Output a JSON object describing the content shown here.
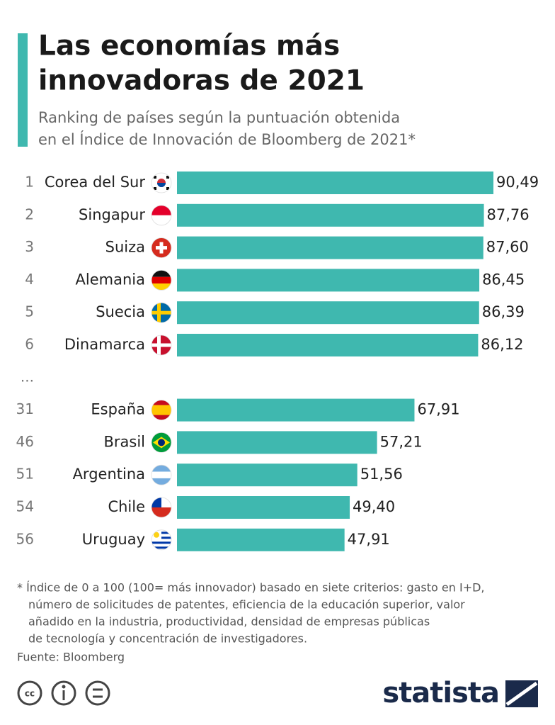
{
  "chart_data": {
    "type": "bar",
    "title": [
      "Las economías más",
      "innovadoras de 2021"
    ],
    "subtitle": [
      "Ranking de países según la puntuación obtenida",
      "en el Índice de Innovación de Bloomberg de 2021*"
    ],
    "ranks": [
      1,
      2,
      3,
      4,
      5,
      6,
      "...",
      31,
      46,
      51,
      54,
      56
    ],
    "categories": [
      "Corea del Sur",
      "Singapur",
      "Suiza",
      "Alemania",
      "Suecia",
      "Dinamarca",
      null,
      "España",
      "Brasil",
      "Argentina",
      "Chile",
      "Uruguay"
    ],
    "values": [
      90.49,
      87.76,
      87.6,
      86.45,
      86.39,
      86.12,
      null,
      67.91,
      57.21,
      51.56,
      49.4,
      47.91
    ],
    "value_labels": [
      "90,49",
      "87,76",
      "87,60",
      "86,45",
      "86,39",
      "86,12",
      null,
      "67,91",
      "57,21",
      "51,56",
      "49,40",
      "47,91"
    ],
    "color": "#3fb8af",
    "note": [
      "* Índice de 0 a 100 (100= más innovador) basado en siete criterios: gasto en I+D,",
      "número de solicitudes de patentes, eficiencia de la educación superior, valor",
      "añadido en la industria, productividad, densidad de empresas públicas",
      "de tecnología y concentración de investigadores."
    ],
    "source": "Fuente: Bloomberg",
    "brand": "statista"
  }
}
